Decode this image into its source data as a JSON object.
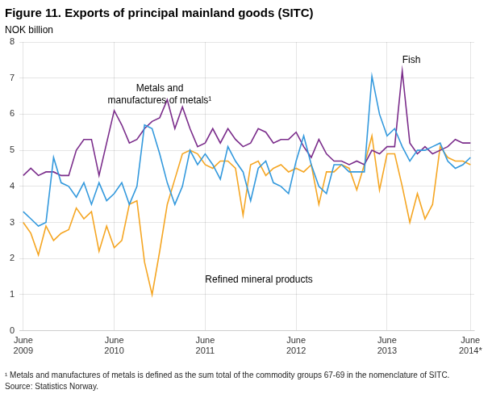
{
  "chart_data": {
    "type": "line",
    "title": "Figure 11. Exports of principal mainland goods (SITC)",
    "ylabel": "NOK billion",
    "categories": [
      "June\n2009",
      null,
      null,
      null,
      null,
      null,
      null,
      null,
      null,
      null,
      null,
      null,
      "June\n2010",
      null,
      null,
      null,
      null,
      null,
      null,
      null,
      null,
      null,
      null,
      null,
      "June\n2011",
      null,
      null,
      null,
      null,
      null,
      null,
      null,
      null,
      null,
      null,
      null,
      "June\n2012",
      null,
      null,
      null,
      null,
      null,
      null,
      null,
      null,
      null,
      null,
      null,
      "June\n2013",
      null,
      null,
      null,
      null,
      null,
      null,
      null,
      null,
      null,
      null,
      "June\n2014*"
    ],
    "series": [
      {
        "color": "#3399dd",
        "values": [
          3.3,
          3.1,
          2.9,
          3.0,
          4.8,
          4.1,
          4.0,
          3.7,
          4.1,
          3.5,
          4.1,
          3.6,
          3.8,
          4.1,
          3.5,
          4.0,
          5.7,
          5.6,
          4.9,
          4.1,
          3.5,
          4.0,
          5.0,
          4.6,
          4.9,
          4.6,
          4.2,
          5.1,
          4.7,
          4.4,
          3.6,
          4.5,
          4.7,
          4.1,
          4.0,
          3.8,
          4.7,
          5.4,
          4.6,
          4.0,
          3.8,
          4.6,
          4.6,
          4.4,
          4.4,
          4.4,
          7.05,
          6.0,
          5.4,
          5.6,
          5.1,
          4.7,
          5.0,
          5.0,
          5.1,
          5.2,
          4.7,
          4.5,
          4.6,
          4.8
        ]
      },
      {
        "color": "#7b2d8b",
        "values": [
          4.3,
          4.5,
          4.3,
          4.4,
          4.4,
          4.3,
          4.3,
          5.0,
          5.3,
          5.3,
          4.3,
          5.2,
          6.1,
          5.7,
          5.2,
          5.3,
          5.6,
          5.8,
          5.9,
          6.4,
          5.6,
          6.2,
          5.6,
          5.1,
          5.2,
          5.6,
          5.2,
          5.6,
          5.3,
          5.1,
          5.2,
          5.6,
          5.5,
          5.2,
          5.3,
          5.3,
          5.5,
          5.1,
          4.8,
          5.3,
          4.9,
          4.7,
          4.7,
          4.6,
          4.7,
          4.6,
          5.0,
          4.9,
          5.1,
          5.1,
          7.2,
          5.2,
          4.9,
          5.1,
          4.9,
          5.0,
          5.1,
          5.3,
          5.2,
          5.2
        ]
      },
      {
        "color": "#f5a623",
        "values": [
          3.0,
          2.7,
          2.1,
          2.9,
          2.5,
          2.7,
          2.8,
          3.4,
          3.1,
          3.3,
          2.2,
          2.9,
          2.3,
          2.5,
          3.5,
          3.6,
          1.9,
          1.0,
          2.2,
          3.5,
          4.2,
          4.9,
          5.0,
          4.9,
          4.6,
          4.5,
          4.7,
          4.7,
          4.5,
          3.2,
          4.6,
          4.7,
          4.3,
          4.5,
          4.6,
          4.4,
          4.5,
          4.4,
          4.6,
          3.5,
          4.4,
          4.4,
          4.6,
          4.5,
          3.9,
          4.6,
          5.4,
          3.9,
          4.9,
          4.9,
          4.0,
          3.0,
          3.8,
          3.1,
          3.5,
          5.1,
          4.8,
          4.7,
          4.7,
          4.6
        ]
      }
    ],
    "ylim": [
      0,
      8
    ],
    "yticks": [
      0,
      1,
      2,
      3,
      4,
      5,
      6,
      7,
      8
    ],
    "grid": true,
    "annotations": [
      {
        "text": "Metals and\nmanufactures of metals¹",
        "x": 18,
        "y": 6.85
      },
      {
        "text": "Fish",
        "x": 50,
        "y": 7.28
      },
      {
        "text": "Refined mineral products",
        "x": 24,
        "y": 1.55
      }
    ],
    "footnotes": [
      "¹ Metals and manufactures of metals is defined as the sum total of the commodity groups 67-69 in the nomenclature of SITC.",
      "Source: Statistics Norway."
    ]
  }
}
